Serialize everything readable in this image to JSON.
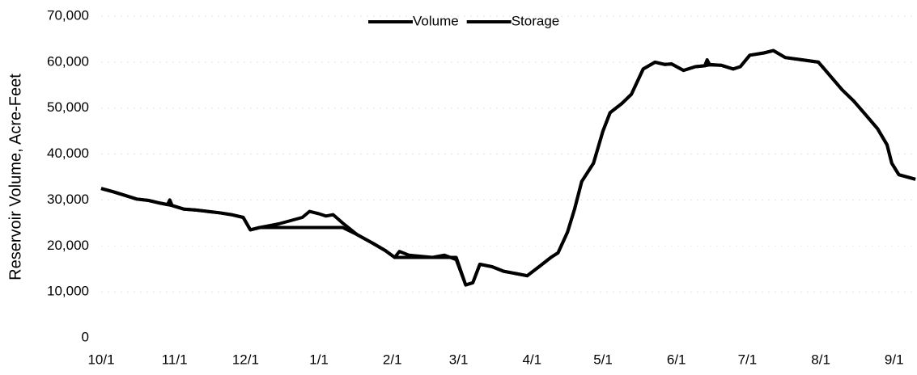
{
  "chart_data": {
    "type": "line",
    "y_label": "Reservoir Volume, Acre-Feet",
    "legend": "top",
    "grid": true,
    "x": [
      0,
      5,
      10,
      15,
      20,
      25,
      28,
      29,
      30,
      35,
      40,
      45,
      50,
      55,
      60,
      63,
      67,
      70,
      75,
      80,
      85,
      88,
      92,
      95,
      98,
      102,
      108,
      115,
      120,
      124,
      126,
      130,
      140,
      145,
      150,
      154,
      157,
      160,
      165,
      170,
      175,
      180,
      185,
      190,
      193,
      197,
      200,
      203,
      208,
      212,
      215,
      220,
      224,
      229,
      234,
      238,
      241,
      246,
      251,
      255,
      256,
      257,
      262,
      267,
      270,
      274,
      280,
      284,
      289,
      296,
      303,
      308,
      313,
      318,
      323,
      328,
      332,
      334,
      337,
      344
    ],
    "series": [
      {
        "name": "Volume",
        "color": "#000000",
        "values": [
          32500,
          31800,
          31000,
          30200,
          29900,
          29300,
          29000,
          30000,
          28800,
          28000,
          27800,
          27500,
          27200,
          26800,
          26200,
          23500,
          24000,
          24300,
          24800,
          25500,
          26200,
          27500,
          27000,
          26500,
          26800,
          25000,
          22500,
          20500,
          19000,
          17500,
          18800,
          18000,
          17500,
          18000,
          17000,
          11500,
          12000,
          16000,
          15500,
          14500,
          14000,
          13500,
          15500,
          17500,
          18500,
          23000,
          28000,
          34000,
          38000,
          45000,
          49000,
          51000,
          53000,
          58500,
          60000,
          59500,
          59600,
          58200,
          59000,
          59200,
          60500,
          59500,
          59300,
          58500,
          59000,
          61500,
          62000,
          62500,
          61000,
          60500,
          60000,
          57000,
          54000,
          51500,
          48500,
          45500,
          42000,
          38000,
          35500,
          34500
        ]
      },
      {
        "name": "Storage",
        "color": "#000000",
        "values": [
          32500,
          31800,
          31000,
          30200,
          29900,
          29300,
          29000,
          28900,
          28800,
          28000,
          27800,
          27500,
          27200,
          26800,
          26200,
          23500,
          24000,
          24000,
          24000,
          24000,
          24000,
          24000,
          24000,
          24000,
          24000,
          24000,
          22500,
          20500,
          19000,
          17500,
          17500,
          17500,
          17500,
          17500,
          17500,
          11500,
          12000,
          16000,
          15500,
          14500,
          14000,
          13500,
          15500,
          17500,
          18500,
          23000,
          28000,
          34000,
          38000,
          45000,
          49000,
          51000,
          53000,
          58500,
          60000,
          59500,
          59600,
          58200,
          59000,
          59200,
          59300,
          59400,
          59300,
          58500,
          59000,
          61500,
          62000,
          62500,
          61000,
          60500,
          60000,
          57000,
          54000,
          51500,
          48500,
          45500,
          42000,
          38000,
          35500,
          34500
        ]
      }
    ],
    "xlim": [
      0,
      345
    ],
    "xticks": [
      {
        "value": 0,
        "label": "10/1"
      },
      {
        "value": 31,
        "label": "11/1"
      },
      {
        "value": 61,
        "label": "12/1"
      },
      {
        "value": 92,
        "label": "1/1"
      },
      {
        "value": 123,
        "label": "2/1"
      },
      {
        "value": 151,
        "label": "3/1"
      },
      {
        "value": 182,
        "label": "4/1"
      },
      {
        "value": 212,
        "label": "5/1"
      },
      {
        "value": 243,
        "label": "6/1"
      },
      {
        "value": 273,
        "label": "7/1"
      },
      {
        "value": 304,
        "label": "8/1"
      },
      {
        "value": 335,
        "label": "9/1"
      }
    ],
    "ylim": [
      0,
      70000
    ],
    "yticks": [
      0,
      {
        "value": 10000,
        "label": "10,000"
      },
      {
        "value": 20000,
        "label": "20,000"
      },
      {
        "value": 30000,
        "label": "30,000"
      },
      {
        "value": 40000,
        "label": "40,000"
      },
      {
        "value": 50000,
        "label": "50,000"
      },
      {
        "value": 60000,
        "label": "60,000"
      },
      {
        "value": 70000,
        "label": "70,000"
      }
    ]
  }
}
